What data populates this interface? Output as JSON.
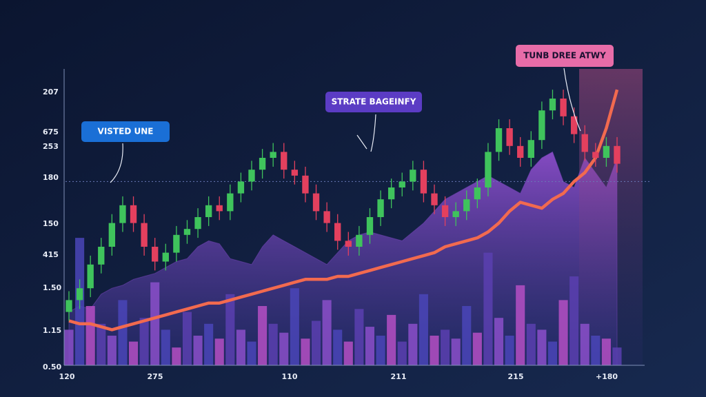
{
  "chart_data": {
    "type": "candlestick",
    "ylim": [
      0,
      100
    ],
    "y_axis_labels": [
      "207",
      "675",
      "253",
      "180",
      "150",
      "415",
      "1.50",
      "1.15",
      "0.50"
    ],
    "x_axis_labels": [
      "120",
      "275",
      "110",
      "211",
      "215",
      "+180"
    ],
    "annotations": [
      "VISTED UNE",
      "STRATE BAGEINFY",
      "TUNB DREE ATWY"
    ],
    "open": [
      18,
      22,
      26,
      34,
      40,
      48,
      54,
      48,
      40,
      35,
      38,
      44,
      46,
      50,
      54,
      52,
      58,
      62,
      66,
      70,
      72,
      66,
      64,
      58,
      52,
      48,
      42,
      40,
      44,
      50,
      56,
      60,
      62,
      66,
      58,
      54,
      50,
      52,
      56,
      60,
      72,
      80,
      74,
      70,
      76,
      86,
      90,
      84,
      78,
      72,
      70,
      74
    ],
    "high": [
      25,
      29,
      37,
      43,
      51,
      57,
      57,
      51,
      43,
      41,
      47,
      49,
      53,
      57,
      57,
      61,
      65,
      69,
      73,
      75,
      75,
      69,
      67,
      61,
      55,
      51,
      45,
      47,
      53,
      59,
      63,
      65,
      69,
      69,
      61,
      57,
      55,
      59,
      63,
      75,
      83,
      83,
      77,
      79,
      89,
      93,
      93,
      87,
      81,
      75,
      77,
      77
    ],
    "low": [
      15,
      19,
      23,
      31,
      37,
      45,
      45,
      37,
      32,
      32,
      35,
      41,
      43,
      47,
      49,
      49,
      55,
      59,
      63,
      67,
      63,
      61,
      55,
      49,
      45,
      39,
      37,
      37,
      41,
      47,
      53,
      57,
      59,
      55,
      51,
      47,
      47,
      49,
      53,
      57,
      69,
      71,
      67,
      67,
      73,
      83,
      81,
      75,
      69,
      67,
      67,
      65
    ],
    "close": [
      22,
      26,
      34,
      40,
      48,
      54,
      48,
      40,
      35,
      38,
      44,
      46,
      50,
      54,
      52,
      58,
      62,
      66,
      70,
      72,
      66,
      64,
      58,
      52,
      48,
      42,
      40,
      44,
      50,
      56,
      60,
      62,
      66,
      58,
      54,
      50,
      52,
      56,
      60,
      72,
      80,
      74,
      70,
      76,
      86,
      90,
      84,
      78,
      72,
      70,
      74,
      68
    ],
    "up_color": "#3fc35c",
    "down_color": "#e3405e",
    "volume": [
      12,
      43,
      20,
      14,
      10,
      22,
      8,
      16,
      28,
      12,
      6,
      18,
      10,
      14,
      9,
      24,
      12,
      8,
      20,
      14,
      11,
      26,
      9,
      15,
      22,
      12,
      8,
      19,
      13,
      10,
      17,
      8,
      14,
      24,
      10,
      12,
      9,
      20,
      11,
      38,
      16,
      10,
      27,
      14,
      12,
      8,
      22,
      30,
      14,
      10,
      9,
      6
    ],
    "volume_colors": [
      "#8b4fca",
      "#4a45b8",
      "#b54fc4",
      "#5a3fb0"
    ],
    "area": {
      "values": [
        18,
        20,
        19,
        24,
        26,
        27,
        29,
        30,
        31,
        33,
        35,
        36,
        40,
        42,
        41,
        36,
        35,
        34,
        40,
        44,
        42,
        40,
        38,
        36,
        34,
        38,
        42,
        44,
        45,
        44,
        43,
        42,
        45,
        48,
        52,
        56,
        58,
        60,
        62,
        64,
        62,
        60,
        58,
        66,
        70,
        72,
        62,
        60,
        70,
        65,
        60,
        70
      ],
      "color": "#7b45c0"
    },
    "line": {
      "values": [
        15,
        14,
        14,
        13,
        12,
        13,
        14,
        15,
        16,
        17,
        18,
        19,
        20,
        21,
        21,
        22,
        23,
        24,
        25,
        26,
        27,
        28,
        29,
        29,
        29,
        30,
        30,
        31,
        32,
        33,
        34,
        35,
        36,
        37,
        38,
        40,
        41,
        42,
        43,
        45,
        48,
        52,
        55,
        54,
        53,
        56,
        58,
        62,
        65,
        70,
        80,
        93
      ],
      "color": "#f26a4f"
    },
    "reference_line": 62
  }
}
